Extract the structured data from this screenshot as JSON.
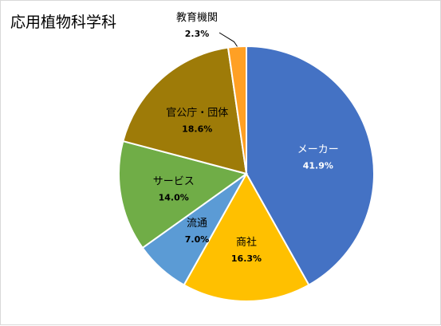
{
  "chart_data": {
    "type": "pie",
    "title": "応用植物科学科",
    "start": "top",
    "direction": "clockwise",
    "slices": [
      {
        "label": "メーカー",
        "value": 41.9,
        "value_text": "41.9%",
        "color": "#4472C4",
        "text_color": "#ffffff"
      },
      {
        "label": "商社",
        "value": 16.3,
        "value_text": "16.3%",
        "color": "#FFC000",
        "text_color": "#000000"
      },
      {
        "label": "流通",
        "value": 7.0,
        "value_text": "7.0%",
        "color": "#5B9BD5",
        "text_color": "#000000"
      },
      {
        "label": "サービス",
        "value": 14.0,
        "value_text": "14.0%",
        "color": "#70AD47",
        "text_color": "#000000"
      },
      {
        "label": "官公庁・団体",
        "value": 18.6,
        "value_text": "18.6%",
        "color": "#9E7B08",
        "text_color": "#000000"
      },
      {
        "label": "教育機関",
        "value": 2.3,
        "value_text": "2.3%",
        "color": "#FFA024",
        "text_color": "#000000"
      }
    ],
    "legend": "none"
  }
}
